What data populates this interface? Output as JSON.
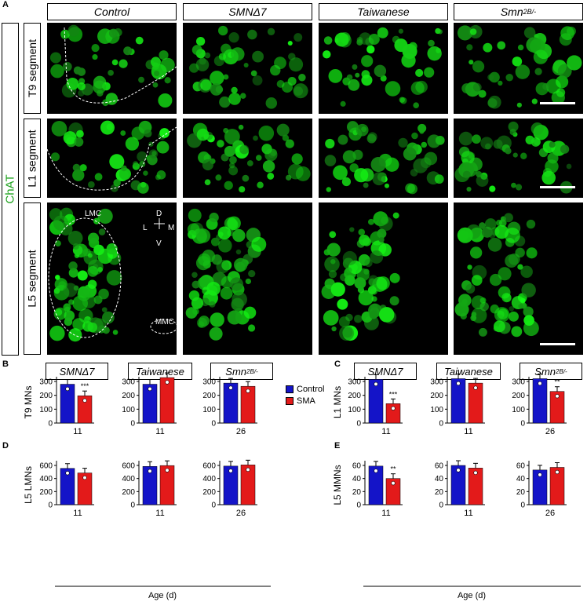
{
  "panels": {
    "A": "A",
    "B": "B",
    "C": "C",
    "D": "D",
    "E": "E"
  },
  "micrograph": {
    "stain_label": "ChAT",
    "columns": [
      "Control",
      "SMNΔ7",
      "Taiwanese",
      "Smn"
    ],
    "smn_sup": "2B/-",
    "rows": [
      "T9 segment",
      "L1 segment",
      "L5 segment"
    ],
    "annotations": {
      "lmc": "LMC",
      "mmc": "MMC",
      "d": "D",
      "v": "V",
      "l": "L",
      "m": "M"
    },
    "colors": {
      "fluor": "#1fcf1f",
      "background": "#000000"
    }
  },
  "legend": {
    "control": "Control",
    "sma": "SMA",
    "control_color": "#1414c8",
    "sma_color": "#e31a1a"
  },
  "group_labels": {
    "g1": "SMNΔ7",
    "g2": "Taiwanese",
    "g3": "Smn",
    "g3_sup": "2B/-"
  },
  "xaxis_title": "Age (d)",
  "chart_data": [
    {
      "panel": "B",
      "type": "bar",
      "ylabel": "T9 MNs",
      "ylim": [
        0,
        300
      ],
      "yticks": [
        0,
        100,
        200,
        300
      ],
      "categories": [
        "11",
        "11",
        "26"
      ],
      "series": [
        {
          "name": "Control",
          "values": [
            280,
            280,
            288
          ]
        },
        {
          "name": "SMA",
          "values": [
            197,
            328,
            265
          ]
        }
      ],
      "significance": [
        "***",
        "",
        ""
      ]
    },
    {
      "panel": "C",
      "type": "bar",
      "ylabel": "L1 MNs",
      "ylim": [
        0,
        300
      ],
      "yticks": [
        0,
        100,
        200,
        300
      ],
      "categories": [
        "11",
        "11",
        "26"
      ],
      "series": [
        {
          "name": "Control",
          "values": [
            315,
            320,
            320
          ]
        },
        {
          "name": "SMA",
          "values": [
            140,
            288,
            228
          ]
        }
      ],
      "significance": [
        "***",
        "",
        "**"
      ]
    },
    {
      "panel": "D",
      "type": "bar",
      "ylabel": "L5 LMNs",
      "ylim": [
        0,
        600
      ],
      "yticks": [
        0,
        200,
        400,
        600
      ],
      "categories": [
        "11",
        "11",
        "26"
      ],
      "series": [
        {
          "name": "Control",
          "values": [
            555,
            585,
            590
          ]
        },
        {
          "name": "SMA",
          "values": [
            485,
            598,
            608
          ]
        }
      ],
      "significance": [
        "",
        "",
        ""
      ]
    },
    {
      "panel": "E",
      "type": "bar",
      "ylabel": "L5 MMNs",
      "ylim": [
        0,
        60
      ],
      "yticks": [
        0,
        20,
        40,
        60
      ],
      "categories": [
        "11",
        "11",
        "26"
      ],
      "series": [
        {
          "name": "Control",
          "values": [
            59,
            60,
            53
          ]
        },
        {
          "name": "SMA",
          "values": [
            40,
            56,
            57
          ]
        }
      ],
      "significance": [
        "**",
        "",
        ""
      ]
    }
  ]
}
